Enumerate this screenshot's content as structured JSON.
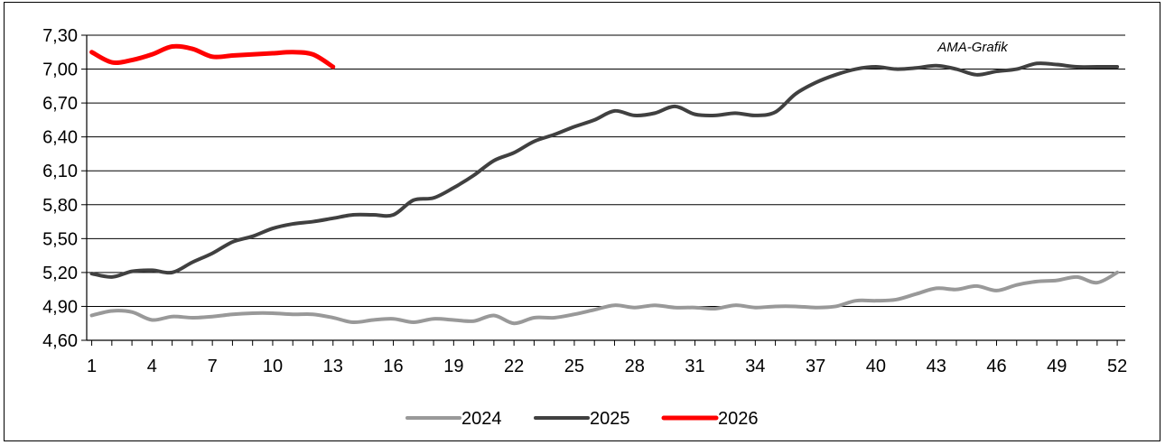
{
  "chart_data": {
    "type": "line",
    "title": "",
    "xlabel": "",
    "ylabel": "",
    "annotation": "AMA-Grafik",
    "ylim": [
      4.6,
      7.3
    ],
    "y_ticks": [
      "4,60",
      "4,90",
      "5,20",
      "5,50",
      "5,80",
      "6,10",
      "6,40",
      "6,70",
      "7,00",
      "7,30"
    ],
    "y_tick_values": [
      4.6,
      4.9,
      5.2,
      5.5,
      5.8,
      6.1,
      6.4,
      6.7,
      7.0,
      7.3
    ],
    "x_range": [
      1,
      52
    ],
    "x_tick_labels": [
      "1",
      "4",
      "7",
      "10",
      "13",
      "16",
      "19",
      "22",
      "25",
      "28",
      "31",
      "34",
      "37",
      "40",
      "43",
      "46",
      "49",
      "52"
    ],
    "x_tick_values": [
      1,
      4,
      7,
      10,
      13,
      16,
      19,
      22,
      25,
      28,
      31,
      34,
      37,
      40,
      43,
      46,
      49,
      52
    ],
    "grid": true,
    "legend_position": "bottom",
    "series": [
      {
        "name": "2024",
        "color": "#999999",
        "x": [
          1,
          2,
          3,
          4,
          5,
          6,
          7,
          8,
          9,
          10,
          11,
          12,
          13,
          14,
          15,
          16,
          17,
          18,
          19,
          20,
          21,
          22,
          23,
          24,
          25,
          26,
          27,
          28,
          29,
          30,
          31,
          32,
          33,
          34,
          35,
          36,
          37,
          38,
          39,
          40,
          41,
          42,
          43,
          44,
          45,
          46,
          47,
          48,
          49,
          50,
          51,
          52
        ],
        "values": [
          4.82,
          4.86,
          4.85,
          4.78,
          4.81,
          4.8,
          4.81,
          4.83,
          4.84,
          4.84,
          4.83,
          4.83,
          4.8,
          4.76,
          4.78,
          4.79,
          4.76,
          4.79,
          4.78,
          4.77,
          4.82,
          4.75,
          4.8,
          4.8,
          4.83,
          4.87,
          4.91,
          4.89,
          4.91,
          4.89,
          4.89,
          4.88,
          4.91,
          4.89,
          4.9,
          4.9,
          4.89,
          4.9,
          4.95,
          4.95,
          4.96,
          5.01,
          5.06,
          5.05,
          5.08,
          5.04,
          5.09,
          5.12,
          5.13,
          5.16,
          5.11,
          5.2
        ]
      },
      {
        "name": "2025",
        "color": "#404040",
        "x": [
          1,
          2,
          3,
          4,
          5,
          6,
          7,
          8,
          9,
          10,
          11,
          12,
          13,
          14,
          15,
          16,
          17,
          18,
          19,
          20,
          21,
          22,
          23,
          24,
          25,
          26,
          27,
          28,
          29,
          30,
          31,
          32,
          33,
          34,
          35,
          36,
          37,
          38,
          39,
          40,
          41,
          42,
          43,
          44,
          45,
          46,
          47,
          48,
          49,
          50,
          51,
          52
        ],
        "values": [
          5.19,
          5.16,
          5.21,
          5.22,
          5.2,
          5.29,
          5.37,
          5.47,
          5.52,
          5.59,
          5.63,
          5.65,
          5.68,
          5.71,
          5.71,
          5.71,
          5.84,
          5.86,
          5.95,
          6.06,
          6.19,
          6.26,
          6.36,
          6.42,
          6.49,
          6.55,
          6.63,
          6.59,
          6.61,
          6.67,
          6.6,
          6.59,
          6.61,
          6.59,
          6.62,
          6.78,
          6.88,
          6.95,
          7.0,
          7.02,
          7.0,
          7.01,
          7.03,
          7.0,
          6.95,
          6.98,
          7.0,
          7.05,
          7.04,
          7.02,
          7.02,
          7.02
        ]
      },
      {
        "name": "2026",
        "color": "#ff0000",
        "x": [
          1,
          2,
          3,
          4,
          5,
          6,
          7,
          8,
          9,
          10,
          11,
          12,
          13
        ],
        "values": [
          7.15,
          7.06,
          7.08,
          7.13,
          7.2,
          7.18,
          7.11,
          7.12,
          7.13,
          7.14,
          7.15,
          7.13,
          7.02
        ]
      }
    ]
  }
}
